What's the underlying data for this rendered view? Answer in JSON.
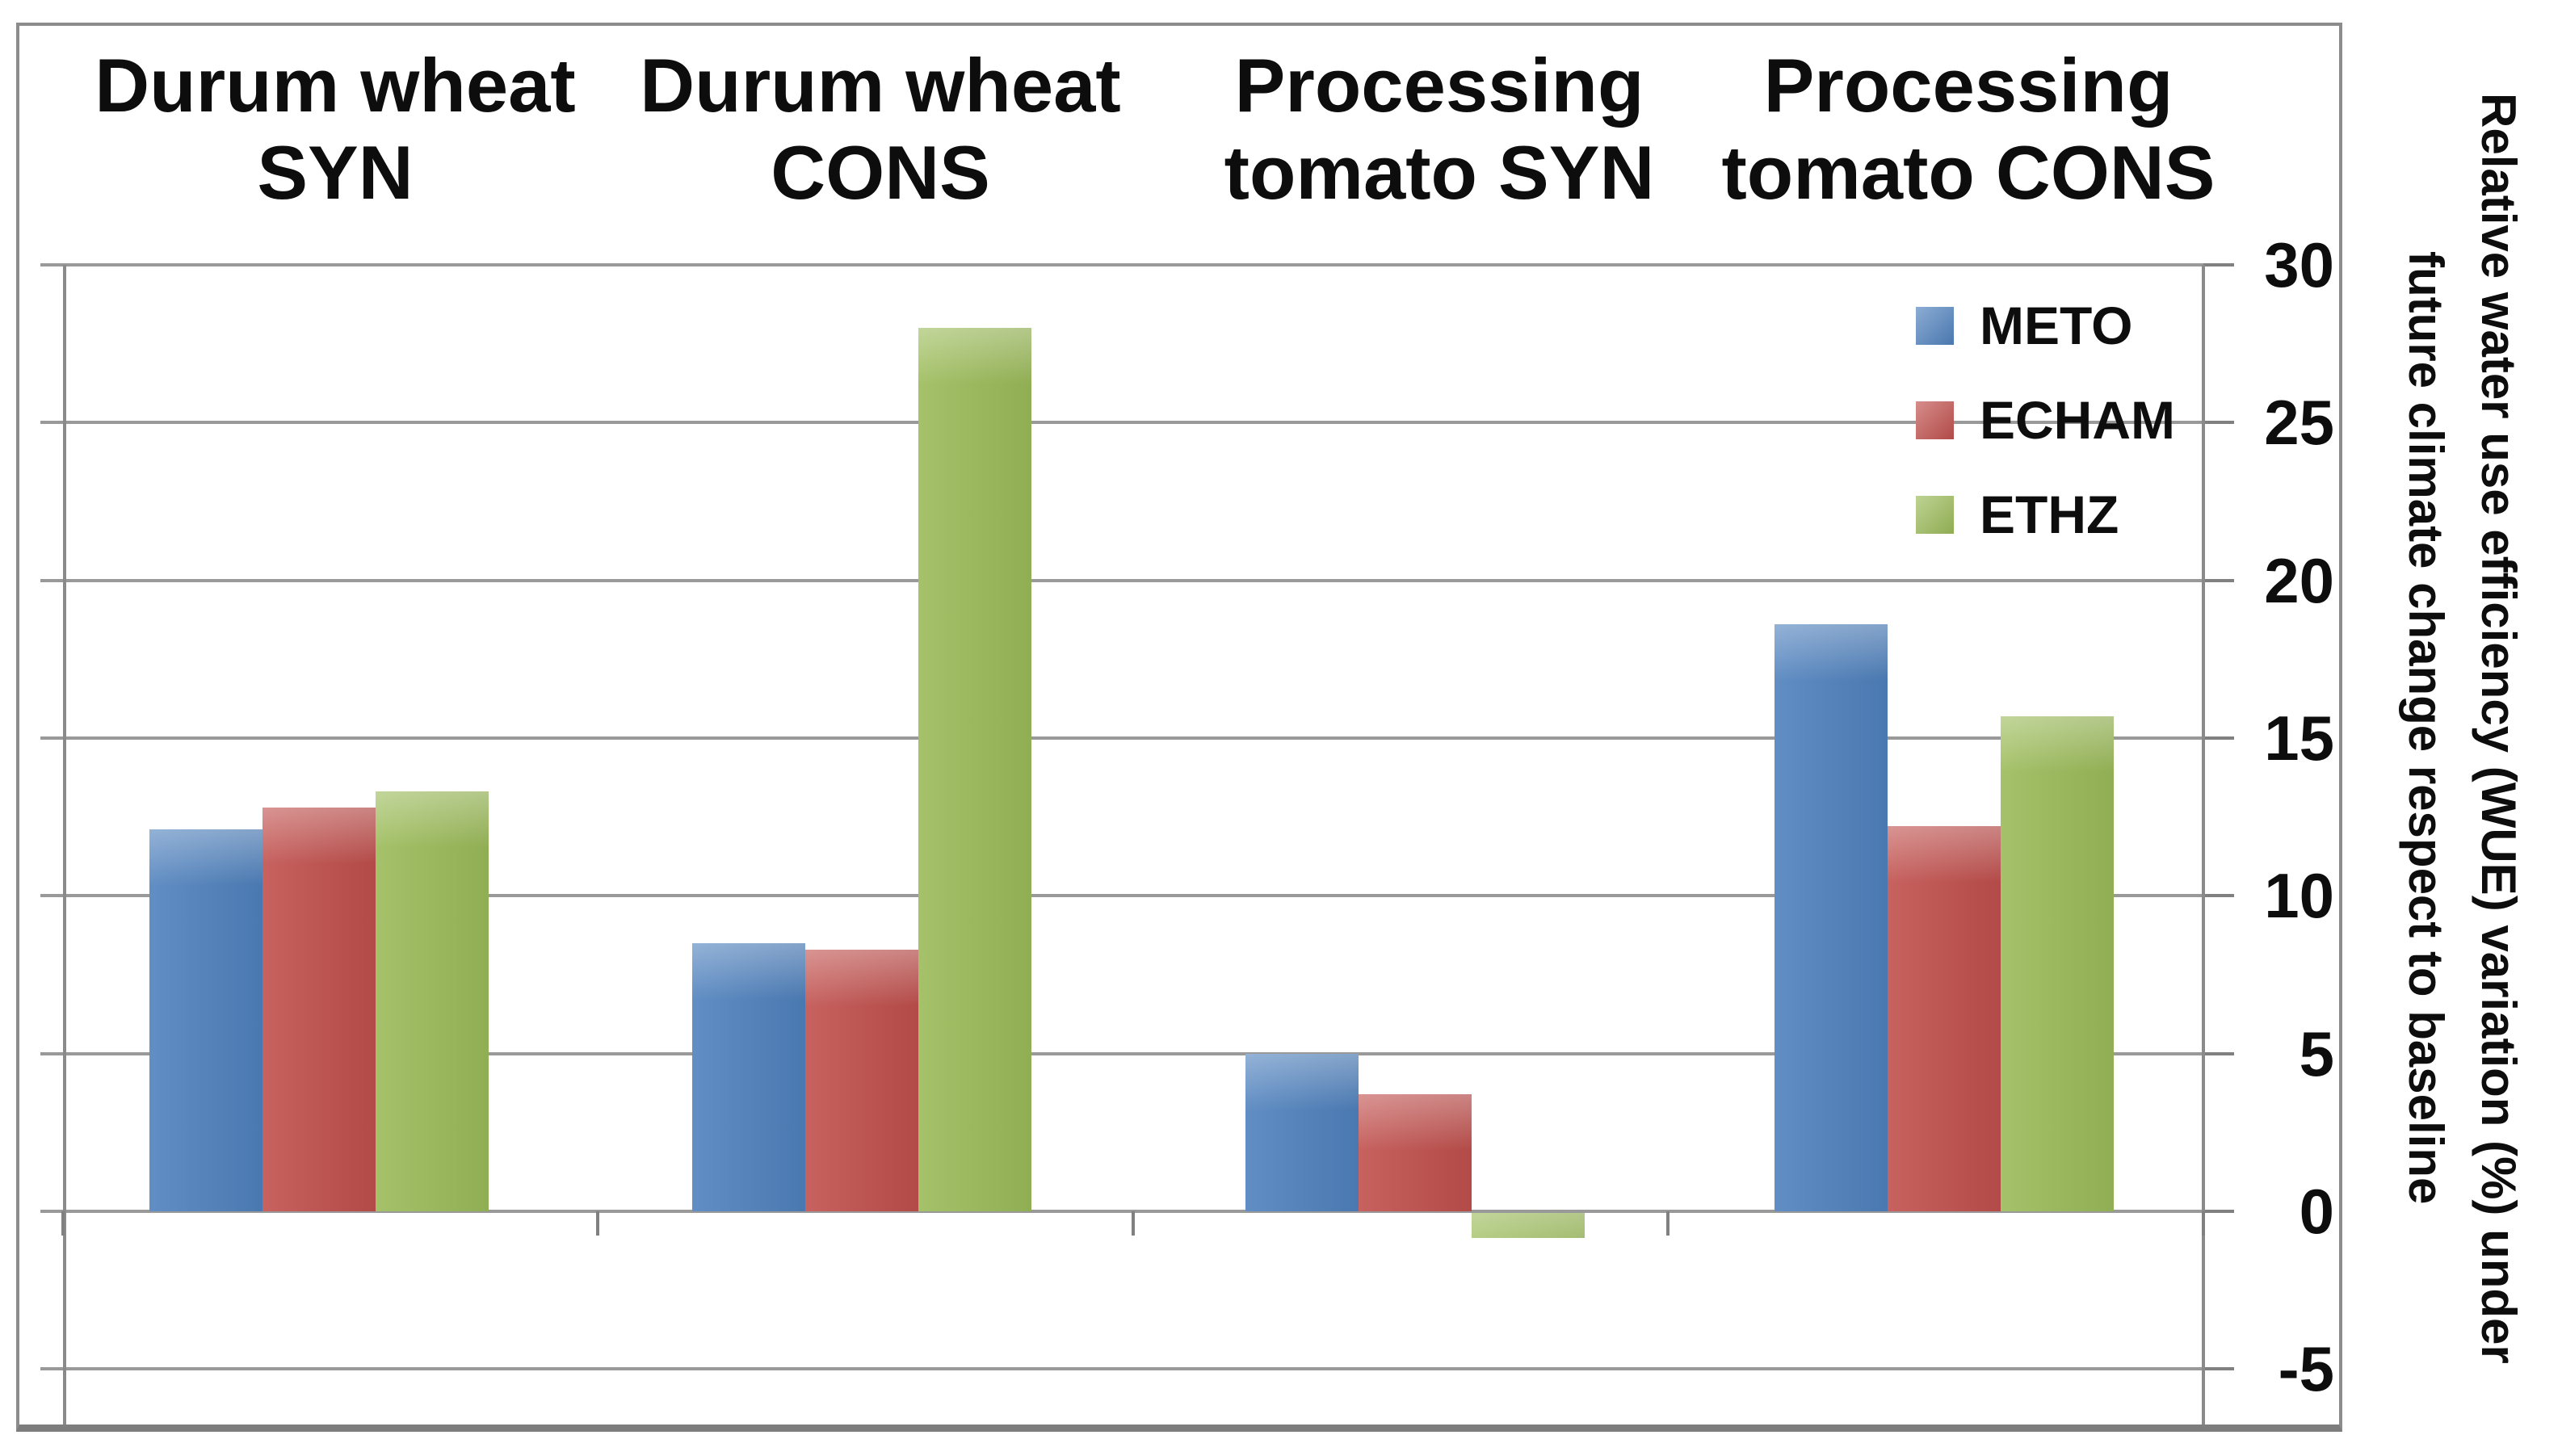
{
  "chart_data": {
    "type": "bar",
    "title": "",
    "categories": [
      "Durum wheat SYN",
      "Durum wheat CONS",
      "Processing tomato SYN",
      "Processing tomato CONS"
    ],
    "category_label_lines": [
      [
        "Durum wheat",
        "SYN"
      ],
      [
        "Durum wheat",
        "CONS"
      ],
      [
        "Processing",
        "tomato SYN"
      ],
      [
        "Processing",
        "tomato CONS"
      ]
    ],
    "series": [
      {
        "name": "METO",
        "color": "#4F81BD",
        "values": [
          12.1,
          8.5,
          5.0,
          18.6
        ]
      },
      {
        "name": "ECHAM",
        "color": "#C0504D",
        "values": [
          12.8,
          8.3,
          3.7,
          12.2
        ]
      },
      {
        "name": "ETHZ",
        "color": "#9BBB59",
        "values": [
          13.3,
          28.0,
          -0.8,
          15.7
        ]
      }
    ],
    "yticks": [
      30,
      25,
      20,
      15,
      10,
      5,
      0,
      -5
    ],
    "ylim": [
      -5,
      30
    ],
    "ylabel_lines": [
      "Relative water use efficiency (WUE) variation (%) under",
      "future climate change respect to baseline"
    ],
    "xlabel": "",
    "grid": true,
    "legend_position": "inside-top-right"
  },
  "colors": {
    "background": "#FFFFFF",
    "gridline": "#999999",
    "axis": "#808080",
    "frame": "#8C8C8C",
    "text": "#0D0D0D",
    "series_blue": "#4F81BD",
    "series_red": "#C0504D",
    "series_green": "#9BBB59"
  }
}
